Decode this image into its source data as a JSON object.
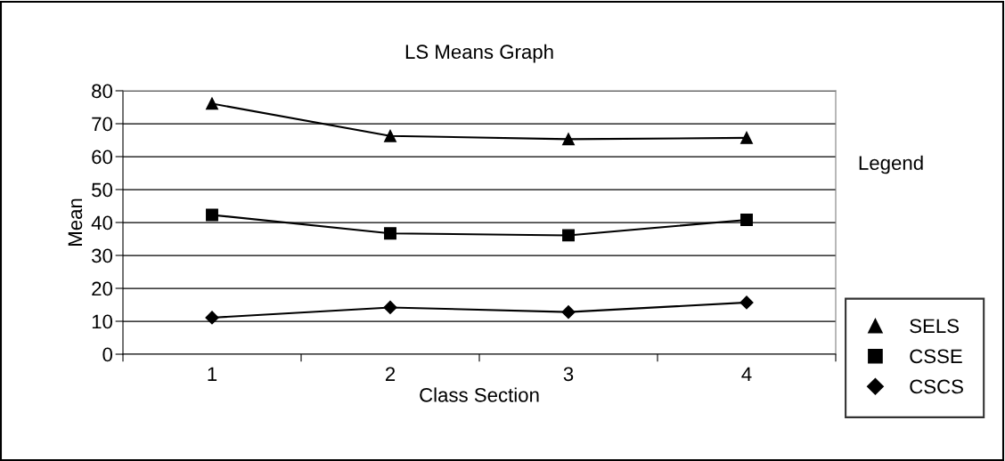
{
  "chart_data": {
    "type": "line",
    "title": "LS Means Graph",
    "xlabel": "Class Section",
    "ylabel": "Mean",
    "legend_title": "Legend",
    "categories": [
      "1",
      "2",
      "3",
      "4"
    ],
    "series": [
      {
        "name": "SELS",
        "color": "#000000",
        "marker": "triangle",
        "values": [
          76.1,
          66.3,
          65.3,
          65.7
        ]
      },
      {
        "name": "CSSE",
        "color": "#000000",
        "marker": "square",
        "values": [
          42.3,
          36.7,
          36.1,
          40.8
        ]
      },
      {
        "name": "CSCS",
        "color": "#000000",
        "marker": "diamond",
        "values": [
          11.1,
          14.2,
          12.8,
          15.7
        ]
      }
    ],
    "ylim": [
      0,
      80
    ],
    "yticks": [
      0,
      10,
      20,
      30,
      40,
      50,
      60,
      70,
      80
    ],
    "grid": "y",
    "legend": "right",
    "line_style": "solid"
  }
}
